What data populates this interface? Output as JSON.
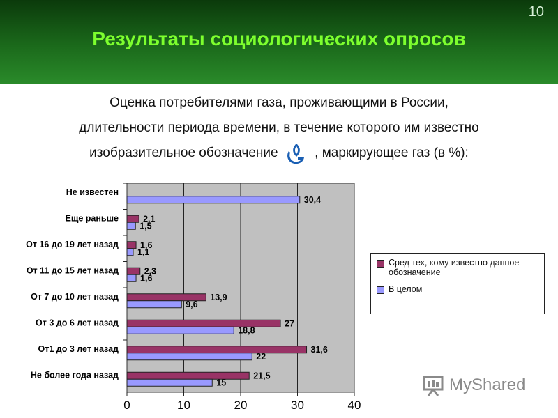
{
  "slide_number": "10",
  "title": "Результаты социологических опросов",
  "subtitle": {
    "line1": "Оценка потребителями газа, проживающими в России,",
    "line2": "длительности периода времени, в течение которого им известно",
    "line3_before": "изобразительное обозначение",
    "line3_after": ", маркирующее газ (в %):"
  },
  "logo_icon": "gazprom-logo-icon",
  "colors": {
    "series1": "#993366",
    "series2": "#9999ff",
    "plot_bg": "#c0c0c0",
    "header": "#1b6a1b",
    "title": "#7dff2e"
  },
  "chart_data": {
    "type": "bar",
    "orientation": "horizontal",
    "categories": [
      "Не известен",
      "Еще раньше",
      "От 16 до 19 лет назад",
      "От 11 до 15 лет назад",
      "От 7 до 10 лет назад",
      "От 3 до 6 лет назад",
      "От1 до 3 лет назад",
      "Не более года назад"
    ],
    "series": [
      {
        "name": "Сред тех, кому известно данное обозначение",
        "values": [
          null,
          2.1,
          1.6,
          2.3,
          13.9,
          27,
          31.6,
          21.5
        ]
      },
      {
        "name": "В целом",
        "values": [
          30.4,
          1.5,
          1.1,
          1.6,
          9.6,
          18.8,
          22,
          15
        ]
      }
    ],
    "value_labels": [
      [
        "",
        "2,1",
        "1,6",
        "2,3",
        "13,9",
        "27",
        "31,6",
        "21,5"
      ],
      [
        "30,4",
        "1,5",
        "1,1",
        "1,6",
        "9,6",
        "18,8",
        "22",
        "15"
      ]
    ],
    "x_ticks": [
      0,
      10,
      20,
      30,
      40
    ],
    "xlim": [
      0,
      40
    ],
    "grid": true,
    "legend_position": "right"
  },
  "watermark": "MyShared"
}
